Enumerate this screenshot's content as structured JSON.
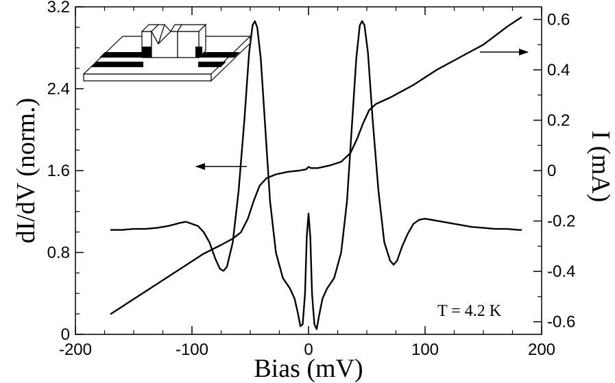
{
  "chart_data": {
    "type": "line",
    "xlabel": "Bias (mV)",
    "ylabel_left": "dI/dV (norm.)",
    "ylabel_right": "I (mA)",
    "xlim": [
      -200,
      200
    ],
    "ylim_left": [
      0,
      3.2
    ],
    "ylim_right": [
      -0.65,
      0.65
    ],
    "x_ticks": [
      -200,
      -100,
      0,
      100,
      200
    ],
    "x_tick_labels": [
      "-200",
      "-100",
      "0",
      "100",
      "200"
    ],
    "y_left_ticks": [
      0,
      0.8,
      1.6,
      2.4,
      3.2
    ],
    "y_left_tick_labels": [
      "0",
      "0.8",
      "1.6",
      "2.4",
      "3.2"
    ],
    "y_right_ticks": [
      -0.6,
      -0.4,
      -0.2,
      0,
      0.2,
      0.4,
      0.6
    ],
    "y_right_tick_labels": [
      "-0.6",
      "-0.4",
      "-0.2",
      "0",
      "0.2",
      "0.4",
      "0.6"
    ],
    "annotation": "T = 4.2 K",
    "grid": false,
    "series": [
      {
        "axis": "left",
        "color": "#000000",
        "points": [
          [
            -170,
            1.02
          ],
          [
            -160,
            1.02
          ],
          [
            -150,
            1.03
          ],
          [
            -140,
            1.03
          ],
          [
            -130,
            1.04
          ],
          [
            -120,
            1.06
          ],
          [
            -110,
            1.09
          ],
          [
            -105,
            1.1
          ],
          [
            -100,
            1.08
          ],
          [
            -95,
            1.06
          ],
          [
            -90,
            1.0
          ],
          [
            -85,
            0.9
          ],
          [
            -80,
            0.74
          ],
          [
            -76,
            0.64
          ],
          [
            -73,
            0.62
          ],
          [
            -70,
            0.66
          ],
          [
            -65,
            0.9
          ],
          [
            -60,
            1.4
          ],
          [
            -55,
            2.1
          ],
          [
            -51,
            2.75
          ],
          [
            -48,
            3.02
          ],
          [
            -46,
            3.06
          ],
          [
            -44,
            3.0
          ],
          [
            -41,
            2.7
          ],
          [
            -37,
            2.0
          ],
          [
            -33,
            1.3
          ],
          [
            -28,
            0.8
          ],
          [
            -22,
            0.55
          ],
          [
            -16,
            0.45
          ],
          [
            -12,
            0.35
          ],
          [
            -9,
            0.2
          ],
          [
            -7,
            0.08
          ],
          [
            -5,
            0.1
          ],
          [
            -3,
            0.4
          ],
          [
            -1.5,
            0.95
          ],
          [
            0,
            1.18
          ],
          [
            1.5,
            0.95
          ],
          [
            3,
            0.4
          ],
          [
            5,
            0.1
          ],
          [
            7,
            0.05
          ],
          [
            9,
            0.18
          ],
          [
            12,
            0.35
          ],
          [
            16,
            0.45
          ],
          [
            22,
            0.55
          ],
          [
            28,
            0.8
          ],
          [
            33,
            1.3
          ],
          [
            37,
            2.0
          ],
          [
            41,
            2.7
          ],
          [
            44,
            3.02
          ],
          [
            46,
            3.06
          ],
          [
            48,
            3.02
          ],
          [
            51,
            2.75
          ],
          [
            55,
            2.1
          ],
          [
            60,
            1.4
          ],
          [
            65,
            0.9
          ],
          [
            70,
            0.72
          ],
          [
            73,
            0.68
          ],
          [
            76,
            0.72
          ],
          [
            80,
            0.85
          ],
          [
            85,
            0.98
          ],
          [
            90,
            1.08
          ],
          [
            95,
            1.12
          ],
          [
            100,
            1.13
          ],
          [
            110,
            1.11
          ],
          [
            120,
            1.09
          ],
          [
            130,
            1.07
          ],
          [
            140,
            1.05
          ],
          [
            150,
            1.04
          ],
          [
            160,
            1.03
          ],
          [
            170,
            1.03
          ],
          [
            180,
            1.02
          ],
          [
            183,
            1.02
          ]
        ]
      },
      {
        "axis": "right",
        "color": "#000000",
        "points": [
          [
            -170,
            -0.57
          ],
          [
            -150,
            -0.51
          ],
          [
            -130,
            -0.45
          ],
          [
            -110,
            -0.39
          ],
          [
            -90,
            -0.33
          ],
          [
            -75,
            -0.295
          ],
          [
            -65,
            -0.27
          ],
          [
            -58,
            -0.245
          ],
          [
            -52,
            -0.19
          ],
          [
            -47,
            -0.12
          ],
          [
            -42,
            -0.06
          ],
          [
            -36,
            -0.03
          ],
          [
            -28,
            -0.015
          ],
          [
            -18,
            -0.005
          ],
          [
            -8,
            0.0
          ],
          [
            -2,
            0.005
          ],
          [
            0,
            0.015
          ],
          [
            2,
            0.01
          ],
          [
            8,
            0.01
          ],
          [
            18,
            0.02
          ],
          [
            28,
            0.035
          ],
          [
            36,
            0.07
          ],
          [
            42,
            0.13
          ],
          [
            47,
            0.19
          ],
          [
            52,
            0.24
          ],
          [
            58,
            0.265
          ],
          [
            70,
            0.29
          ],
          [
            90,
            0.34
          ],
          [
            110,
            0.4
          ],
          [
            130,
            0.45
          ],
          [
            150,
            0.5
          ],
          [
            170,
            0.57
          ],
          [
            183,
            0.61
          ]
        ]
      }
    ]
  }
}
